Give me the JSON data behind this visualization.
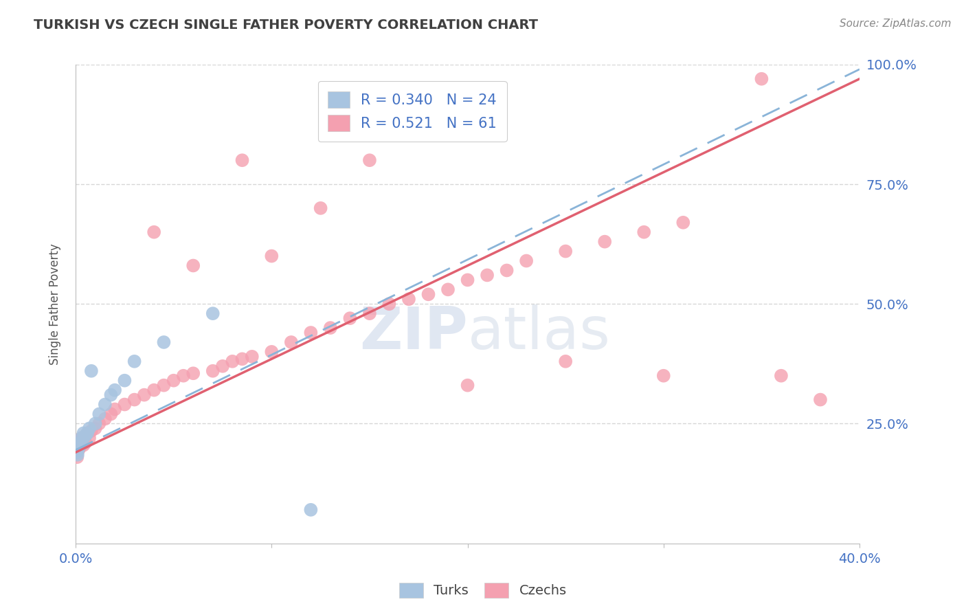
{
  "title": "TURKISH VS CZECH SINGLE FATHER POVERTY CORRELATION CHART",
  "source": "Source: ZipAtlas.com",
  "ylabel_label": "Single Father Poverty",
  "xlim": [
    0.0,
    40.0
  ],
  "ylim": [
    0.0,
    100.0
  ],
  "turks_R": 0.34,
  "turks_N": 24,
  "czechs_R": 0.521,
  "czechs_N": 61,
  "turks_color": "#a8c4e0",
  "czechs_color": "#f4a0b0",
  "turks_line_color": "#8ab4d8",
  "czechs_line_color": "#e06070",
  "axis_label_color": "#4472c4",
  "title_color": "#404040",
  "source_color": "#888888",
  "watermark_color": "#c8d8ee",
  "background_color": "#ffffff",
  "grid_color": "#cccccc",
  "turks_x": [
    0.05,
    0.08,
    0.1,
    0.12,
    0.15,
    0.2,
    0.25,
    0.3,
    0.35,
    0.4,
    0.5,
    0.6,
    0.7,
    0.8,
    1.0,
    1.2,
    1.5,
    1.8,
    2.0,
    2.5,
    3.0,
    4.5,
    7.0,
    12.0
  ],
  "turks_y": [
    19.0,
    20.0,
    18.5,
    19.5,
    20.0,
    21.0,
    20.5,
    22.0,
    21.5,
    23.0,
    22.5,
    23.0,
    24.0,
    36.0,
    25.0,
    27.0,
    29.0,
    31.0,
    32.0,
    34.0,
    38.0,
    42.0,
    48.0,
    7.0
  ],
  "czechs_x": [
    0.05,
    0.08,
    0.1,
    0.12,
    0.15,
    0.2,
    0.25,
    0.3,
    0.4,
    0.5,
    0.6,
    0.7,
    0.8,
    1.0,
    1.2,
    1.5,
    1.8,
    2.0,
    2.5,
    3.0,
    3.5,
    4.0,
    4.5,
    5.0,
    5.5,
    6.0,
    7.0,
    7.5,
    8.0,
    8.5,
    9.0,
    10.0,
    11.0,
    12.0,
    13.0,
    14.0,
    15.0,
    16.0,
    17.0,
    18.0,
    19.0,
    20.0,
    21.0,
    22.0,
    23.0,
    25.0,
    27.0,
    29.0,
    31.0,
    4.0,
    6.0,
    8.5,
    10.0,
    12.5,
    15.0,
    20.0,
    25.0,
    30.0,
    35.0,
    36.0,
    38.0
  ],
  "czechs_y": [
    19.0,
    18.0,
    20.0,
    21.0,
    19.5,
    20.0,
    21.5,
    22.0,
    20.5,
    21.0,
    23.0,
    22.0,
    23.5,
    24.0,
    25.0,
    26.0,
    27.0,
    28.0,
    29.0,
    30.0,
    31.0,
    32.0,
    33.0,
    34.0,
    35.0,
    35.5,
    36.0,
    37.0,
    38.0,
    38.5,
    39.0,
    40.0,
    42.0,
    44.0,
    45.0,
    47.0,
    48.0,
    50.0,
    51.0,
    52.0,
    53.0,
    55.0,
    56.0,
    57.0,
    59.0,
    61.0,
    63.0,
    65.0,
    67.0,
    65.0,
    58.0,
    80.0,
    60.0,
    70.0,
    80.0,
    33.0,
    38.0,
    35.0,
    97.0,
    35.0,
    30.0
  ],
  "turks_line_x0": 0.0,
  "turks_line_y0": 19.5,
  "turks_line_x1": 40.0,
  "turks_line_y1": 99.0,
  "czechs_line_x0": 0.0,
  "czechs_line_y0": 19.0,
  "czechs_line_x1": 40.0,
  "czechs_line_y1": 97.0
}
